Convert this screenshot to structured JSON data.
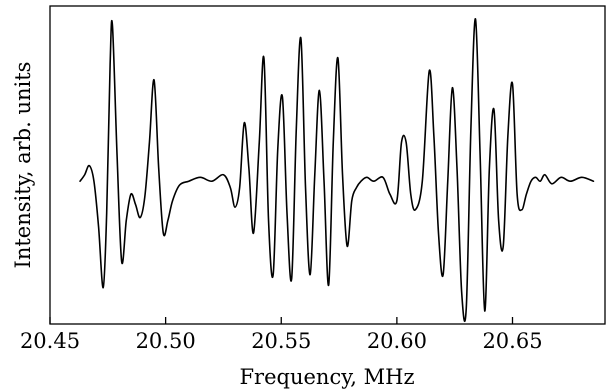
{
  "chart_data": {
    "type": "line",
    "title": "",
    "xlabel": "Frequency, MHz",
    "ylabel": "Intensity, arb. units",
    "xlim": [
      20.45,
      20.69
    ],
    "ylim": [
      -1.1,
      1.35
    ],
    "xticks": [
      {
        "value": 20.45,
        "label": "20.45"
      },
      {
        "value": 20.5,
        "label": "20.50"
      },
      {
        "value": 20.55,
        "label": "20.55"
      },
      {
        "value": 20.6,
        "label": "20.60"
      },
      {
        "value": 20.65,
        "label": "20.65"
      }
    ],
    "y_tick_labels": false,
    "grid": false,
    "legend": "none",
    "line_color": "#000000",
    "series": [
      {
        "x": [
          20.463,
          20.465,
          20.467,
          20.469,
          20.471,
          20.473,
          20.4745,
          20.476,
          20.477,
          20.479,
          20.481,
          20.483,
          20.485,
          20.487,
          20.489,
          20.491,
          20.493,
          20.495,
          20.497,
          20.499,
          20.501,
          20.503,
          20.506,
          20.51,
          20.515,
          20.52,
          20.525,
          20.528,
          20.53,
          20.532,
          20.534,
          20.536,
          20.538,
          20.5405,
          20.5425,
          20.5445,
          20.5465,
          20.5485,
          20.5505,
          20.5525,
          20.5545,
          20.5565,
          20.5585,
          20.5605,
          20.5625,
          20.5645,
          20.5665,
          20.5685,
          20.5705,
          20.5725,
          20.5745,
          20.5765,
          20.5785,
          20.5805,
          20.5825,
          20.5845,
          20.587,
          20.59,
          20.594,
          20.597,
          20.6,
          20.602,
          20.604,
          20.606,
          20.608,
          20.611,
          20.614,
          20.616,
          20.618,
          20.62,
          20.622,
          20.624,
          20.626,
          20.628,
          20.63,
          20.632,
          20.634,
          20.636,
          20.638,
          20.64,
          20.642,
          20.644,
          20.646,
          20.648,
          20.65,
          20.652,
          20.654,
          20.656,
          20.658,
          20.66,
          20.662,
          20.664,
          20.667,
          20.671,
          20.675,
          20.68,
          20.685
        ],
        "y": [
          0.0,
          0.05,
          0.12,
          0.0,
          -0.35,
          -0.82,
          -0.25,
          0.9,
          1.2,
          0.2,
          -0.62,
          -0.3,
          -0.1,
          -0.18,
          -0.28,
          -0.12,
          0.3,
          0.78,
          0.1,
          -0.4,
          -0.3,
          -0.15,
          -0.03,
          0.0,
          0.03,
          0.0,
          0.05,
          -0.05,
          -0.2,
          -0.05,
          0.45,
          0.1,
          -0.4,
          0.3,
          0.95,
          -0.3,
          -0.72,
          0.25,
          0.65,
          -0.25,
          -0.75,
          0.4,
          1.1,
          -0.05,
          -0.72,
          0.05,
          0.7,
          0.0,
          -0.8,
          0.3,
          0.95,
          0.05,
          -0.5,
          -0.15,
          -0.05,
          0.0,
          0.03,
          0.0,
          0.03,
          -0.1,
          -0.15,
          0.3,
          0.3,
          -0.1,
          -0.22,
          0.0,
          0.85,
          0.35,
          -0.4,
          -0.72,
          0.0,
          0.72,
          0.1,
          -0.85,
          -0.98,
          0.4,
          1.25,
          0.2,
          -1.0,
          0.1,
          0.55,
          -0.3,
          -0.5,
          0.35,
          0.75,
          -0.1,
          -0.22,
          -0.1,
          0.0,
          0.03,
          0.0,
          0.05,
          -0.02,
          0.03,
          0.0,
          0.03,
          0.0
        ]
      }
    ]
  }
}
